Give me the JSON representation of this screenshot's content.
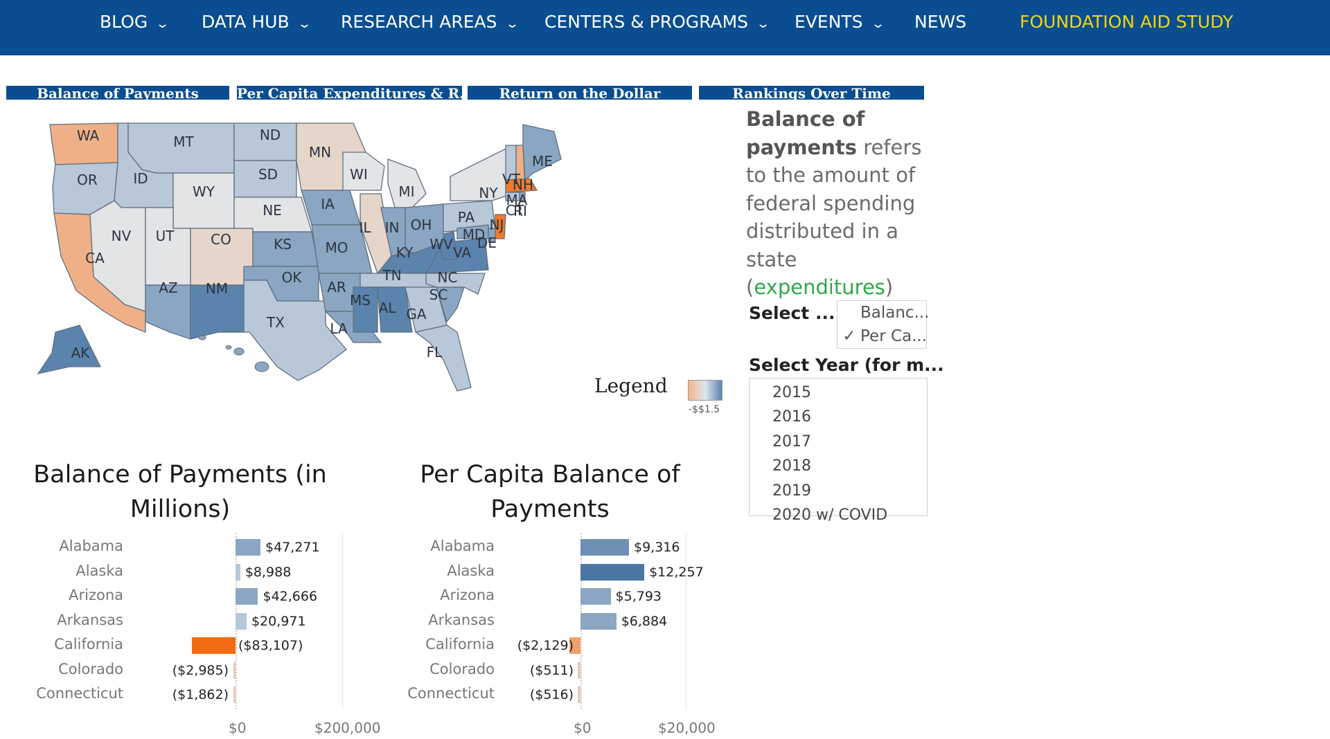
{
  "nav": {
    "items": [
      {
        "label": "BLOG",
        "dropdown": true
      },
      {
        "label": "DATA HUB",
        "dropdown": true
      },
      {
        "label": "RESEARCH AREAS",
        "dropdown": true
      },
      {
        "label": "CENTERS & PROGRAMS",
        "dropdown": true
      },
      {
        "label": "EVENTS",
        "dropdown": true
      },
      {
        "label": "NEWS",
        "dropdown": false
      },
      {
        "label": "FOUNDATION AID STUDY",
        "dropdown": false
      }
    ],
    "accent_color": "#f5d50f",
    "bar_color": "#0a4e91"
  },
  "tabs": [
    "Balance of Payments",
    "Per Capita Expenditures & R...",
    "Return on the Dollar",
    "Rankings Over Time"
  ],
  "map": {
    "states": [
      "WA",
      "OR",
      "CA",
      "ID",
      "NV",
      "MT",
      "WY",
      "UT",
      "AZ",
      "CO",
      "NM",
      "ND",
      "SD",
      "NE",
      "KS",
      "OK",
      "TX",
      "MN",
      "IA",
      "MO",
      "AR",
      "LA",
      "WI",
      "IL",
      "MI",
      "IN",
      "KY",
      "TN",
      "MS",
      "AL",
      "GA",
      "FL",
      "SC",
      "NC",
      "VA",
      "WV",
      "OH",
      "PA",
      "NY",
      "MD",
      "DE",
      "NJ",
      "VT",
      "NH",
      "ME",
      "MA",
      "CT",
      "RI",
      "AK"
    ],
    "colors": {
      "orange_strong": "#f07a2a",
      "orange_light": "#f0b087",
      "tan": "#e6d6ca",
      "light": "#e3e4e6",
      "blue_light": "#b8c8d8",
      "blue_mid": "#8aa6c2",
      "blue_dark": "#5b84ad"
    }
  },
  "description": {
    "bold": "Balance of payments",
    "text": " refers to the amount of federal spending distributed in a state (",
    "link": "expenditures",
    "close": ")"
  },
  "controls": {
    "select_label": "Select ...",
    "options": [
      {
        "label": "Balanc...",
        "checked": false
      },
      {
        "label": "Per Ca...",
        "checked": true
      }
    ],
    "check_mark": "✓",
    "year_label": "Select Year (for m...",
    "years": [
      "2015",
      "2016",
      "2017",
      "2018",
      "2019",
      "2020 w/ COVID"
    ]
  },
  "legend": {
    "title": "Legend",
    "tick": "-$$1.5"
  },
  "chart_data": [
    {
      "type": "bar",
      "title": "Balance of Payments (in Millions)",
      "categories": [
        "Alabama",
        "Alaska",
        "Arizona",
        "Arkansas",
        "California",
        "Colorado",
        "Connecticut"
      ],
      "values": [
        47271,
        8988,
        42666,
        20971,
        -83107,
        -2985,
        -1862
      ],
      "labels": [
        "$47,271",
        "$8,988",
        "$42,666",
        "$20,971",
        "($83,107)",
        "($2,985)",
        "($1,862)"
      ],
      "x_ticks": [
        "$0",
        "$200,000"
      ],
      "xlim": [
        -105000,
        215000
      ]
    },
    {
      "type": "bar",
      "title": "Per Capita Balance of Payments",
      "categories": [
        "Alabama",
        "Alaska",
        "Arizona",
        "Arkansas",
        "California",
        "Colorado",
        "Connecticut"
      ],
      "values": [
        9316,
        12257,
        5793,
        6884,
        -2129,
        -511,
        -516
      ],
      "labels": [
        "$9,316",
        "$12,257",
        "$5,793",
        "$6,884",
        "($2,129)",
        "($511)",
        "($516)"
      ],
      "x_ticks": [
        "$0",
        "$20,000"
      ],
      "xlim": [
        -16000,
        28000
      ]
    }
  ]
}
